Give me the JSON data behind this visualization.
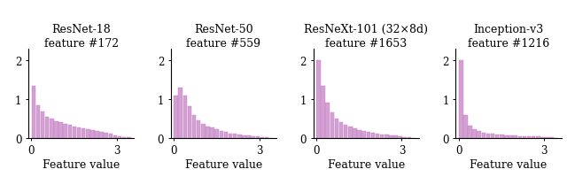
{
  "titles": [
    "ResNet-18\nfeature #172",
    "ResNet-50\nfeature #559",
    "ResNeXt-101 (32×8d)\nfeature #1653",
    "Inception-v3\nfeature #1216"
  ],
  "xlabel": "Feature value",
  "bar_color": "#d4a0d4",
  "bar_edge_color": "#c080c0",
  "xlim": [
    -0.1,
    3.6
  ],
  "ylim": [
    0,
    2.3
  ],
  "yticks": [
    0,
    1,
    2
  ],
  "xticks": [
    0,
    3
  ],
  "xticklabels": [
    "0",
    "3"
  ],
  "n_bins": 22,
  "bin_start": 0.0,
  "bin_end": 3.5,
  "hist_data": [
    [
      1.35,
      0.85,
      0.68,
      0.55,
      0.5,
      0.44,
      0.4,
      0.36,
      0.33,
      0.3,
      0.27,
      0.25,
      0.22,
      0.2,
      0.18,
      0.16,
      0.14,
      0.11,
      0.07,
      0.03,
      0.02,
      0.01
    ],
    [
      1.1,
      1.3,
      1.1,
      0.82,
      0.6,
      0.45,
      0.36,
      0.3,
      0.26,
      0.22,
      0.18,
      0.15,
      0.12,
      0.1,
      0.08,
      0.07,
      0.06,
      0.05,
      0.03,
      0.02,
      0.01,
      0.005
    ],
    [
      2.0,
      1.35,
      0.92,
      0.65,
      0.5,
      0.41,
      0.34,
      0.29,
      0.25,
      0.21,
      0.18,
      0.15,
      0.13,
      0.11,
      0.09,
      0.08,
      0.07,
      0.06,
      0.04,
      0.02,
      0.01,
      0.005
    ],
    [
      2.0,
      0.58,
      0.32,
      0.22,
      0.17,
      0.14,
      0.11,
      0.1,
      0.09,
      0.08,
      0.07,
      0.06,
      0.06,
      0.05,
      0.05,
      0.04,
      0.04,
      0.03,
      0.02,
      0.015,
      0.01,
      0.005
    ]
  ],
  "title_fontsize": 9,
  "label_fontsize": 9,
  "tick_fontsize": 8.5,
  "figsize": [
    6.4,
    2.01
  ],
  "dpi": 100
}
